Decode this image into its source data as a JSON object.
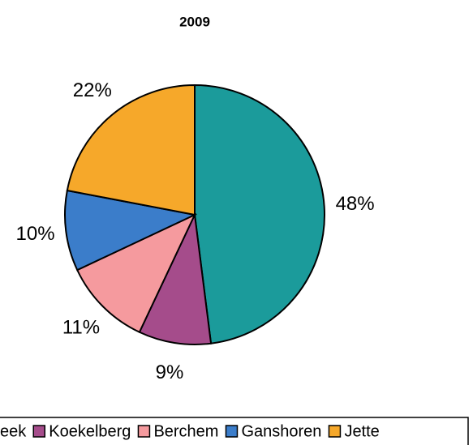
{
  "chart_data": {
    "type": "pie",
    "title": "2009",
    "categories": [
      "eek",
      "Koekelberg",
      "Berchem",
      "Ganshoren",
      "Jette"
    ],
    "values": [
      48,
      9,
      11,
      10,
      22
    ],
    "value_labels": [
      "48%",
      "9%",
      "11%",
      "10%",
      "22%"
    ],
    "colors": [
      "#1b9b9b",
      "#a54c8b",
      "#f59a9e",
      "#3b7dca",
      "#f6a82a"
    ],
    "legend": "bottom"
  }
}
